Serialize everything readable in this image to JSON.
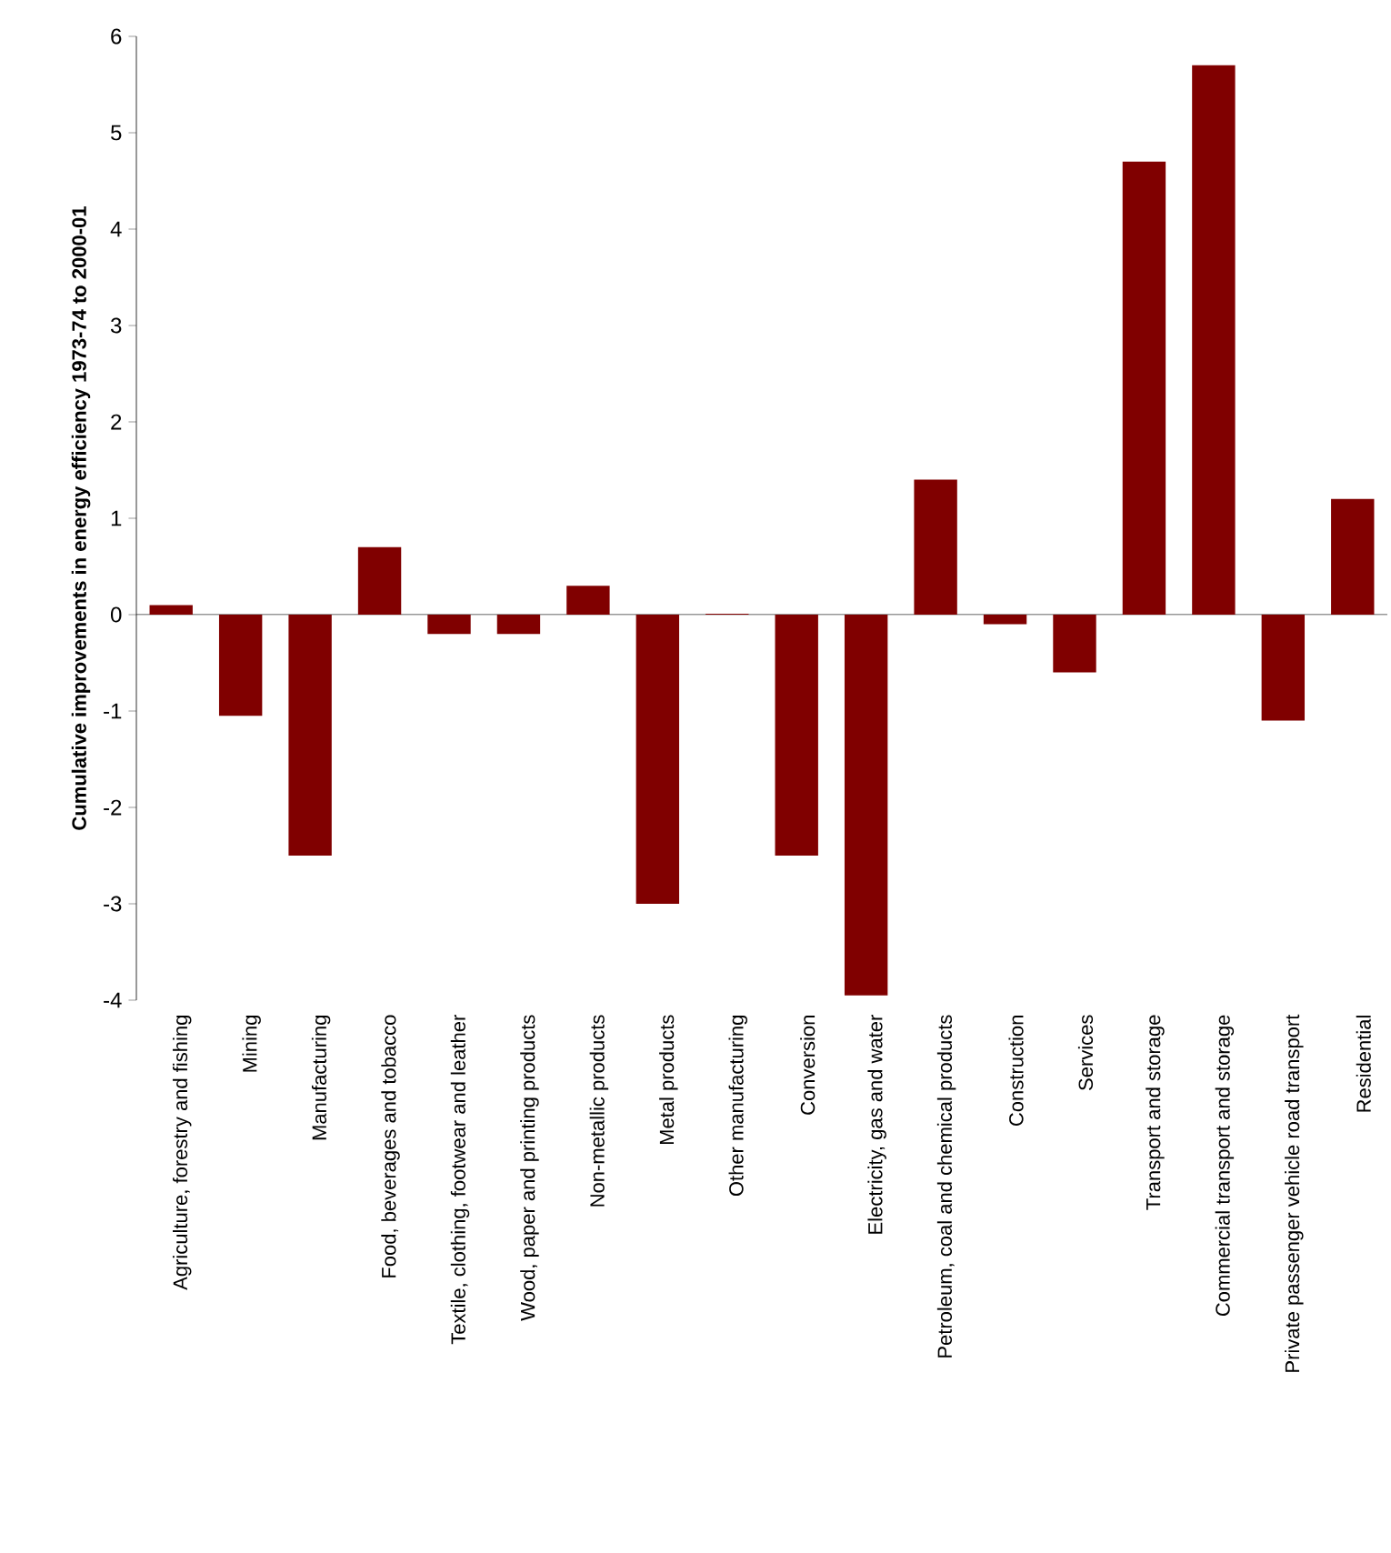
{
  "chart_data": {
    "type": "bar",
    "ylabel": "Cumulative improvements in energy efficiency 1973-74 to 2000-01",
    "categories": [
      "Agriculture, forestry and fishing",
      "Mining",
      "Manufacturing",
      "Food, beverages and tobacco",
      "Textile, clothing, footwear and leather",
      "Wood, paper and printing products",
      "Non-metallic products",
      "Metal products",
      "Other manufacturing",
      "Conversion",
      "Electricity, gas and water",
      "Petroleum, coal and chemical products",
      "Construction",
      "Services",
      "Transport and storage",
      "Commercial transport and storage",
      "Private passenger vehicle road transport",
      "Residential"
    ],
    "values": [
      0.1,
      -1.05,
      -2.5,
      0.7,
      -0.2,
      -0.2,
      0.3,
      -3.0,
      0.01,
      -2.5,
      -3.95,
      1.4,
      -0.1,
      -0.6,
      4.7,
      5.7,
      -1.1,
      1.2
    ],
    "color": "#800000",
    "ylim": [
      -4,
      6
    ],
    "yticks": [
      -4,
      -3,
      -2,
      -1,
      0,
      1,
      2,
      3,
      4,
      5,
      6
    ]
  }
}
